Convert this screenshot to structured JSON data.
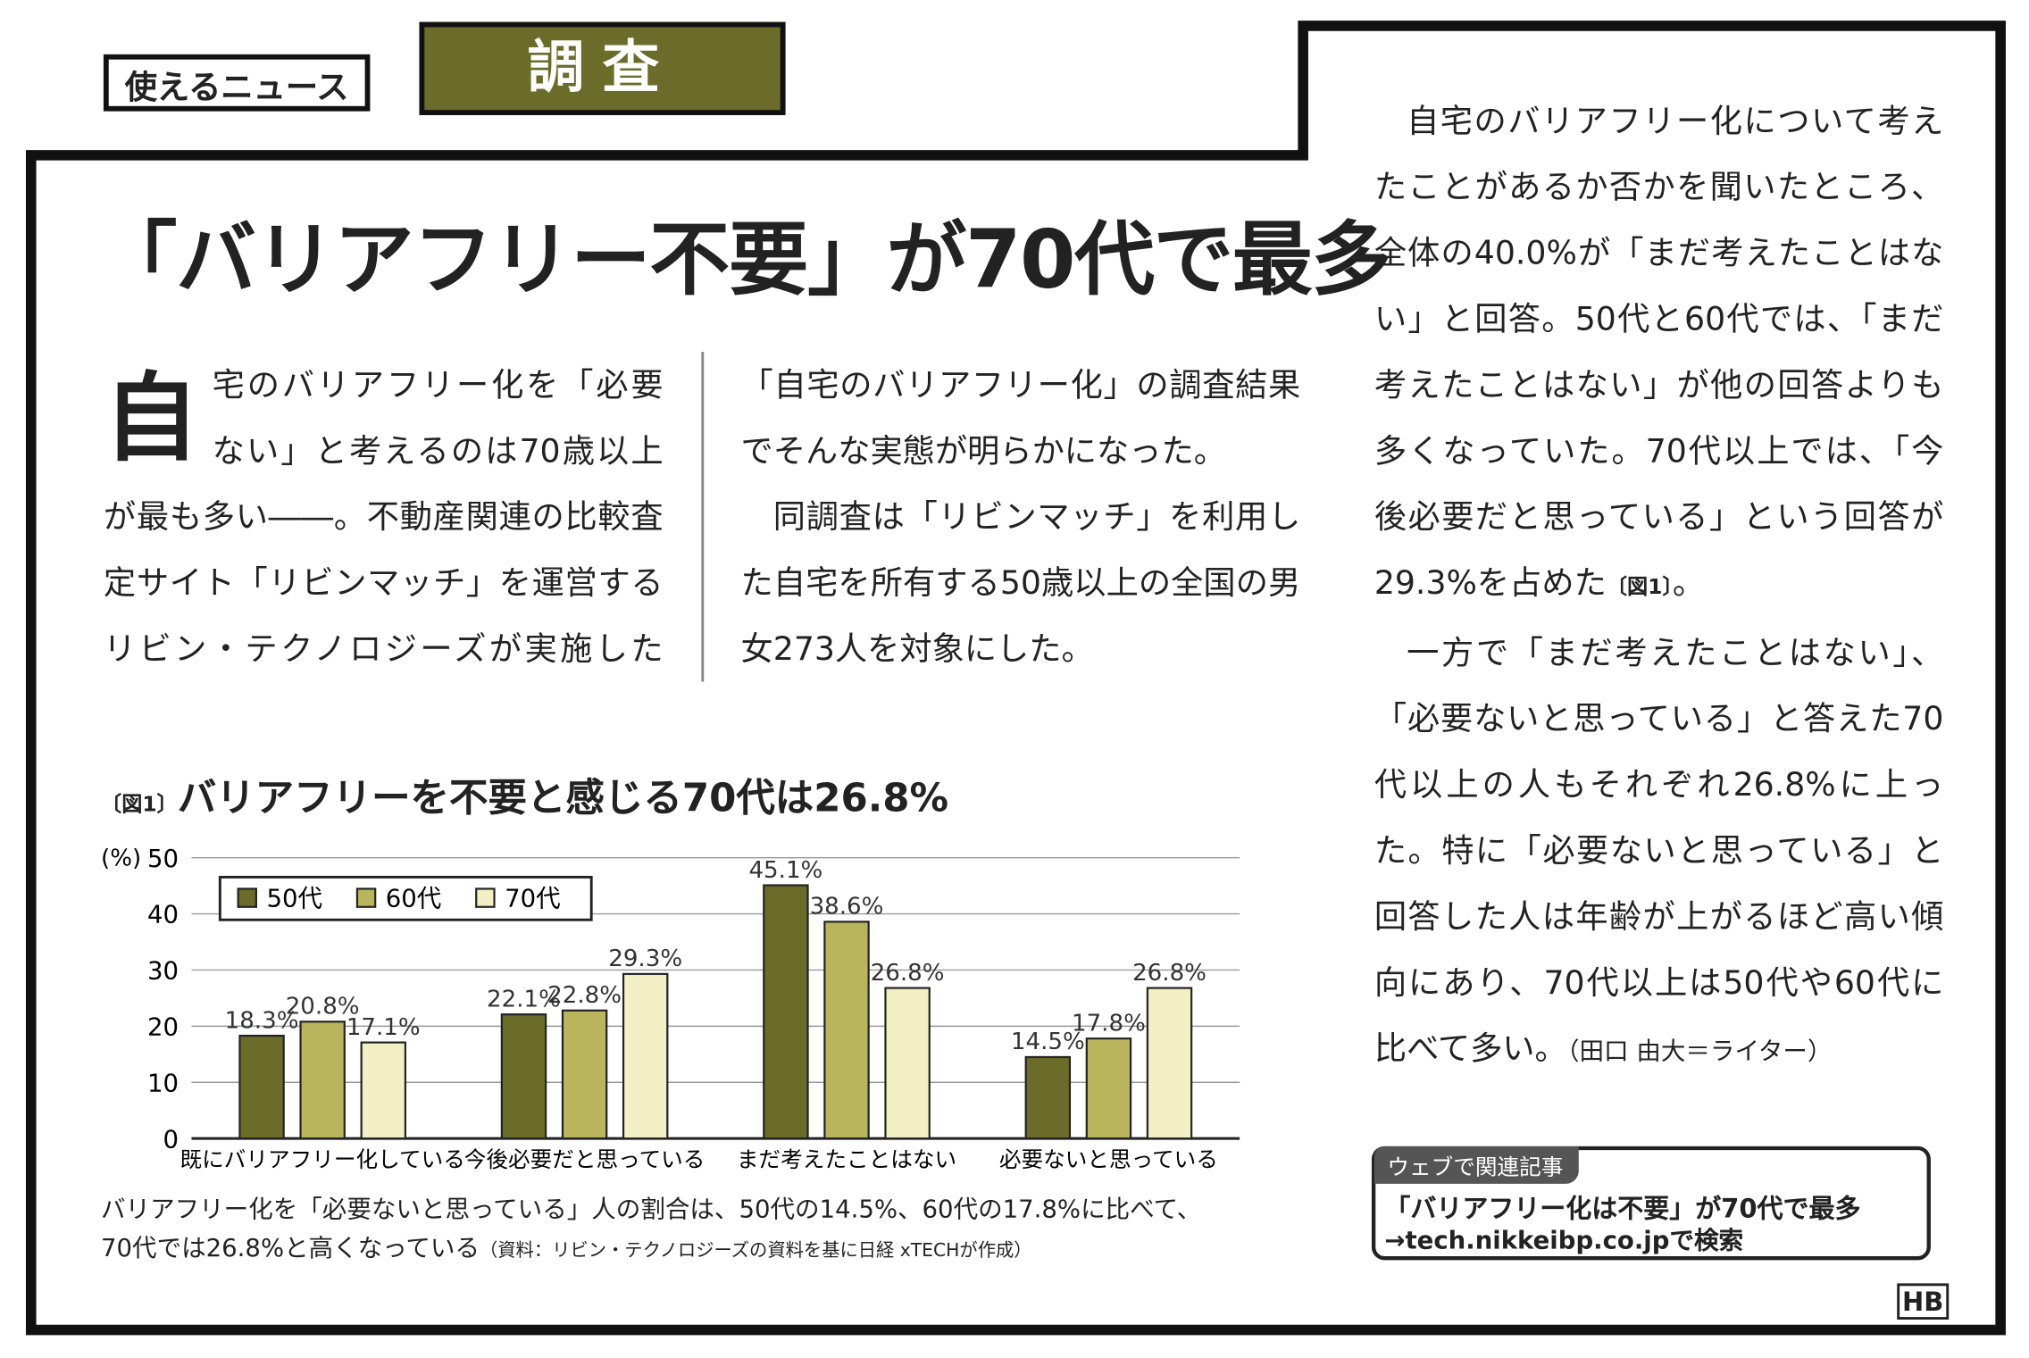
{
  "header": {
    "section": "使えるニュース",
    "tab": "調査"
  },
  "article": {
    "headline": "「バリアフリー不要」が70代で最多",
    "drop_cap": "自",
    "paragraphs": [
      "宅のバリアフリー化を「必要ない」と考えるのは70歳以上が最も多い――。不動産関連の比較査定サイト「リビンマッチ」を運営するリビン・テクノロジーズが実施した「自宅のバリアフリー化」の調査結果でそんな実態が明らかになった。",
      "同調査は「リビンマッチ」を利用した自宅を所有する50歳以上の全国の男女273人を対象にした。"
    ],
    "right_paragraphs": [
      [
        "自宅のバリアフリー化について考えたことがあるか否かを聞いたところ、全体の40.0%が「まだ考えたことはない」と回答。50代と60代では、「まだ考えたことはない」が他の回答よりも多くなっていた。70代以上では、「今後必要だと思っている」という回答が29.3%を占めた",
        "〔図1〕",
        "。"
      ],
      [
        "一方で「まだ考えたことはない」、「必要ないと思っている」と答えた70代以上の人もそれぞれ26.8%に上った。特に「必要ないと思っている」と回答した人は年齢が上がるほど高い傾向にあり、70代以上は50代や60代に比べて多い。",
        "（田口 由大＝ライター）"
      ]
    ]
  },
  "chart_data": {
    "type": "bar",
    "figure_label": "〔図1〕",
    "title": "バリアフリーを不要と感じる70代は26.8%",
    "y_label": "(%)",
    "categories": [
      "既にバリアフリー化している",
      "今後必要だと思っている",
      "まだ考えたことはない",
      "必要ないと思っている"
    ],
    "series": [
      {
        "name": "50代",
        "color": "#6b6b2a",
        "values": [
          18.3,
          22.1,
          45.1,
          14.5
        ],
        "value_labels": [
          "18.3%",
          "22.1%",
          "45.1%",
          "14.5%"
        ]
      },
      {
        "name": "60代",
        "color": "#b8b55c",
        "values": [
          20.8,
          22.8,
          38.6,
          17.8
        ],
        "value_labels": [
          "20.8%",
          "22.8%",
          "38.6%",
          "17.8%"
        ]
      },
      {
        "name": "70代",
        "color": "#f2efc4",
        "values": [
          17.1,
          29.3,
          26.8,
          26.8
        ],
        "value_labels": [
          "17.1%",
          "29.3%",
          "26.8%",
          "26.8%"
        ]
      }
    ],
    "ylim": [
      0,
      50
    ],
    "yticks": [
      0,
      10,
      20,
      30,
      40,
      50
    ],
    "grid": true,
    "legend": "top-left",
    "caption": "バリアフリー化を「必要ないと思っている」人の割合は、50代の14.5%、60代の17.8%に比べて、70代では26.8%と高くなっている",
    "source": "（資料：リビン・テクノロジーズの資料を基に日経 xTECHが作成）"
  },
  "web_box": {
    "label": "ウェブで関連記事",
    "title": "「バリアフリー化は不要」が70代で最多",
    "link": "→tech.nikkeibp.co.jpで検索"
  },
  "logo": "HB"
}
